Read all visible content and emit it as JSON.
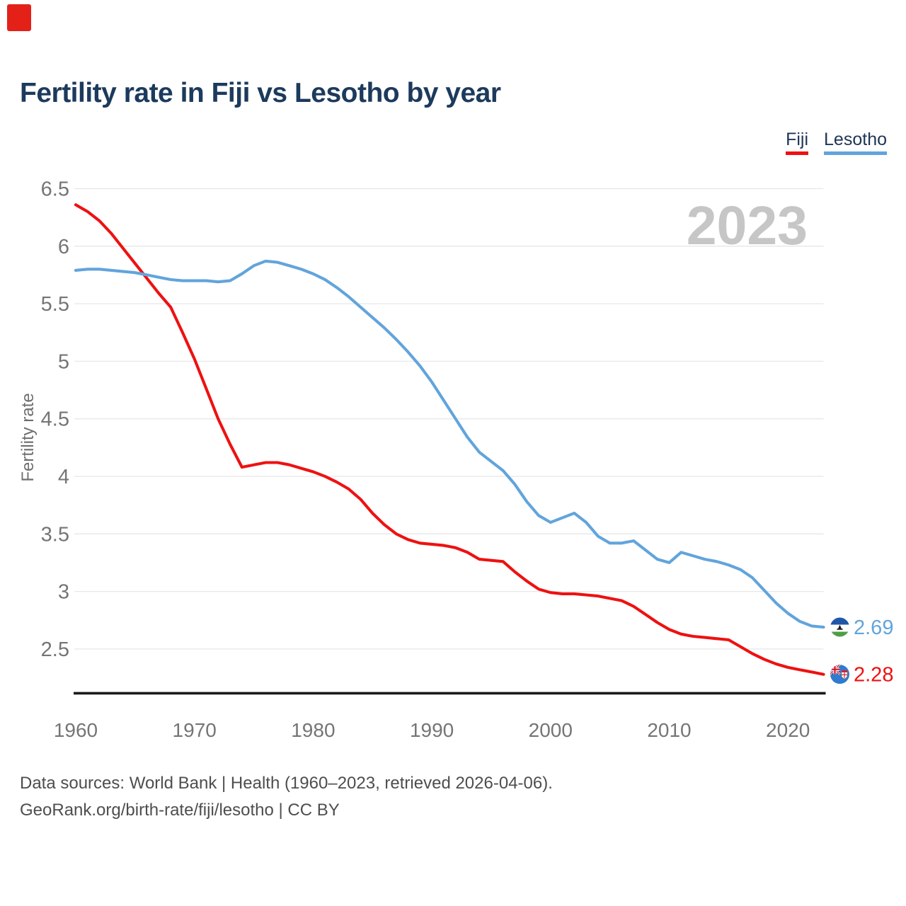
{
  "page": {
    "title": "Fertility rate in Fiji vs Lesotho by year",
    "watermark": "2023",
    "footer_line1": "Data sources: World Bank | Health (1960–2023, retrieved 2026-04-06).",
    "footer_line2": "GeoRank.org/birth-rate/fiji/lesotho | CC BY"
  },
  "legend": [
    {
      "label": "Fiji",
      "color": "#ee1111"
    },
    {
      "label": "Lesotho",
      "color": "#62a4dc"
    }
  ],
  "colors": {
    "title_navy": "#1c3a5c",
    "legend_text": "#1d3557",
    "fiji_red": "#ee1111",
    "lesotho_blue": "#62a4dc",
    "tick_gray": "#757575",
    "watermark_gray": "#c6c6c6",
    "footer_gray": "#4e4e4e",
    "grid_gray": "#e7e7e7",
    "axis_black": "#1a1a1a",
    "brand_red": "#e32119"
  },
  "chart_data": {
    "type": "line",
    "title": "Fertility rate in Fiji vs Lesotho by year",
    "xlabel": "",
    "ylabel": "Fertility rate",
    "xlim": [
      1960,
      2023
    ],
    "ylim": [
      2.1,
      6.5
    ],
    "grid": "horizontal",
    "legend_position": "top-right",
    "watermark": "2023",
    "x_ticks": [
      1960,
      1970,
      1980,
      1990,
      2000,
      2010,
      2020
    ],
    "y_ticks": [
      2.5,
      3,
      3.5,
      4,
      4.5,
      5,
      5.5,
      6,
      6.5
    ],
    "years": [
      1960,
      1961,
      1962,
      1963,
      1964,
      1965,
      1966,
      1967,
      1968,
      1969,
      1970,
      1971,
      1972,
      1973,
      1974,
      1975,
      1976,
      1977,
      1978,
      1979,
      1980,
      1981,
      1982,
      1983,
      1984,
      1985,
      1986,
      1987,
      1988,
      1989,
      1990,
      1991,
      1992,
      1993,
      1994,
      1995,
      1996,
      1997,
      1998,
      1999,
      2000,
      2001,
      2002,
      2003,
      2004,
      2005,
      2006,
      2007,
      2008,
      2009,
      2010,
      2011,
      2012,
      2013,
      2014,
      2015,
      2016,
      2017,
      2018,
      2019,
      2020,
      2021,
      2022,
      2023
    ],
    "series": [
      {
        "name": "Fiji",
        "color": "#ee1111",
        "end_label": "2.28",
        "end_flag": "fiji",
        "values": [
          6.36,
          6.3,
          6.22,
          6.11,
          5.98,
          5.85,
          5.72,
          5.59,
          5.47,
          5.25,
          5.02,
          4.76,
          4.5,
          4.28,
          4.08,
          4.1,
          4.12,
          4.12,
          4.1,
          4.07,
          4.04,
          4.0,
          3.95,
          3.89,
          3.8,
          3.68,
          3.58,
          3.5,
          3.45,
          3.42,
          3.41,
          3.4,
          3.38,
          3.34,
          3.28,
          3.27,
          3.26,
          3.17,
          3.09,
          3.02,
          2.99,
          2.98,
          2.98,
          2.97,
          2.96,
          2.94,
          2.92,
          2.87,
          2.8,
          2.73,
          2.67,
          2.63,
          2.61,
          2.6,
          2.59,
          2.58,
          2.52,
          2.46,
          2.41,
          2.37,
          2.34,
          2.32,
          2.3,
          2.28
        ]
      },
      {
        "name": "Lesotho",
        "color": "#62a4dc",
        "end_label": "2.69",
        "end_flag": "lesotho",
        "values": [
          5.79,
          5.8,
          5.8,
          5.79,
          5.78,
          5.77,
          5.75,
          5.73,
          5.71,
          5.7,
          5.7,
          5.7,
          5.69,
          5.7,
          5.76,
          5.83,
          5.87,
          5.86,
          5.83,
          5.8,
          5.76,
          5.71,
          5.64,
          5.56,
          5.47,
          5.38,
          5.29,
          5.19,
          5.08,
          4.96,
          4.82,
          4.66,
          4.5,
          4.34,
          4.21,
          4.13,
          4.05,
          3.93,
          3.78,
          3.66,
          3.6,
          3.64,
          3.68,
          3.6,
          3.48,
          3.42,
          3.42,
          3.44,
          3.36,
          3.28,
          3.25,
          3.34,
          3.31,
          3.28,
          3.26,
          3.23,
          3.19,
          3.12,
          3.01,
          2.9,
          2.81,
          2.74,
          2.7,
          2.69
        ]
      }
    ]
  }
}
